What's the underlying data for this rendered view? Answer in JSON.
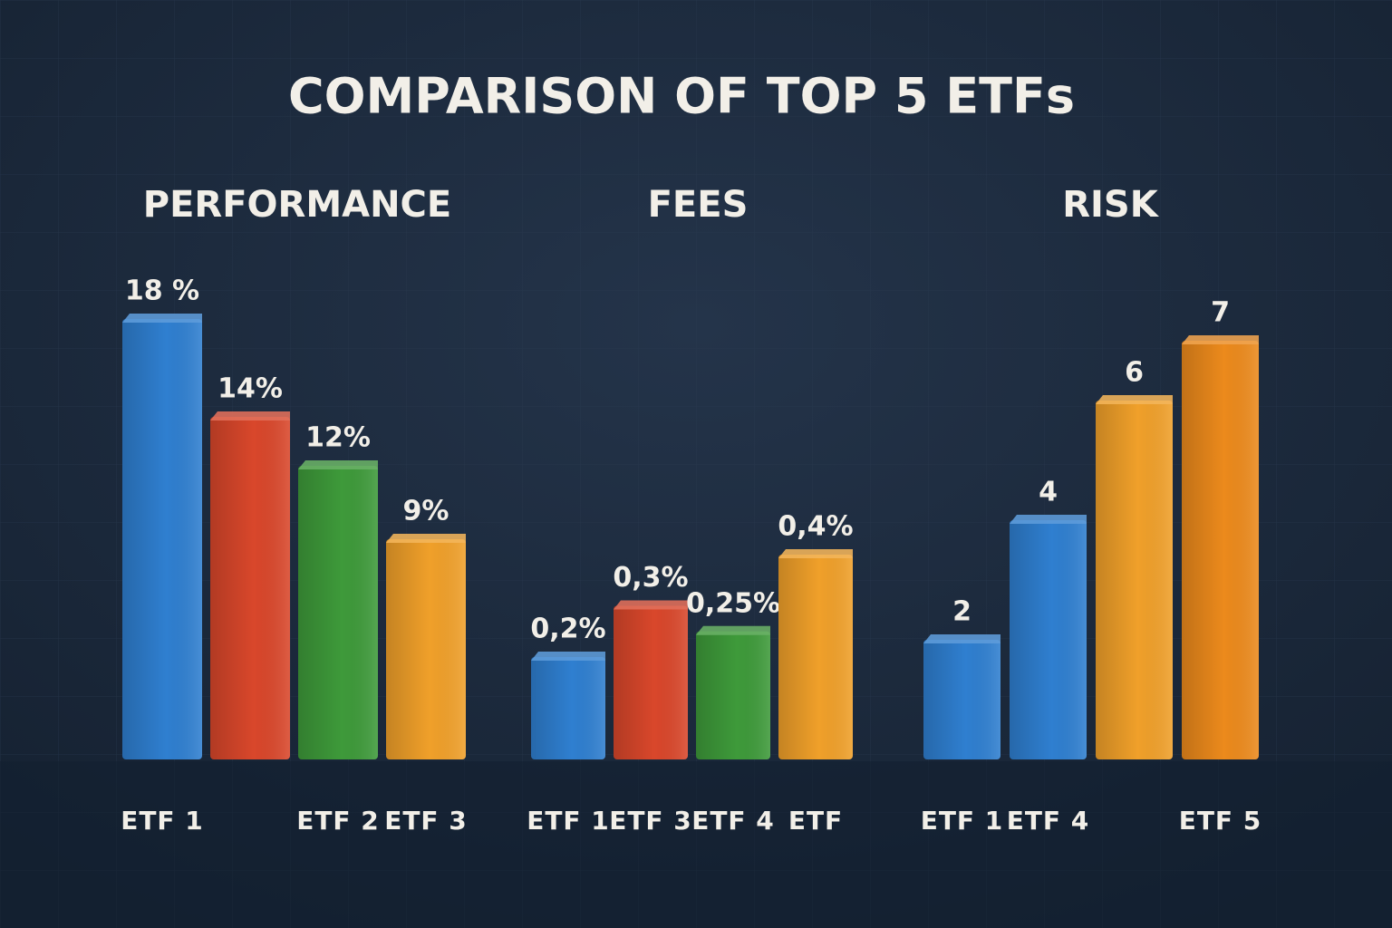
{
  "title": "COMPARISON OF TOP 5 ETFs",
  "chart_data": [
    {
      "type": "bar",
      "title": "PERFORMANCE",
      "categories": [
        "ETF 1",
        null,
        "ETF 2",
        "ETF 3"
      ],
      "values": [
        18,
        14,
        12,
        9
      ],
      "value_labels": [
        "18 %",
        "14%",
        "12%",
        "9%"
      ],
      "colors": [
        "#2f7fd0",
        "#d9472b",
        "#3e9a3a",
        "#f0a02a"
      ]
    },
    {
      "type": "bar",
      "title": "FEES",
      "categories": [
        "ETF 1",
        "ETF 3",
        "ETF 4",
        "ETF"
      ],
      "values": [
        0.2,
        0.3,
        0.25,
        0.4
      ],
      "value_labels": [
        "0,2%",
        "0,3%",
        "0,25%",
        "0,4%"
      ],
      "colors": [
        "#2f7fd0",
        "#d9472b",
        "#3e9a3a",
        "#f0a02a"
      ]
    },
    {
      "type": "bar",
      "title": "RISK",
      "categories": [
        "ETF 1",
        "ETF 4",
        null,
        "ETF 5"
      ],
      "values": [
        2,
        4,
        6,
        7
      ],
      "colors": [
        "#2f7fd0",
        "#2f7fd0",
        "#f0a02a",
        "#ec8a1c"
      ]
    }
  ]
}
